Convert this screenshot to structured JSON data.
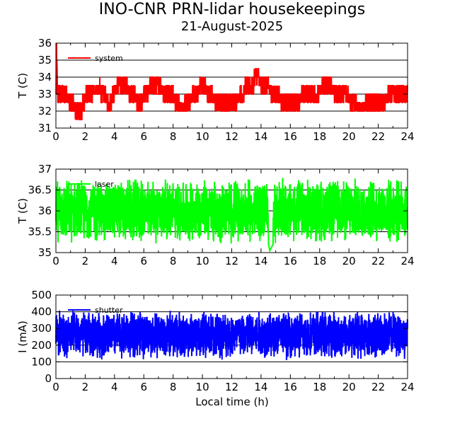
{
  "figure": {
    "title": "INO-CNR PRN-lidar housekeepings",
    "subtitle": "21-August-2025",
    "xlabel": "Local time (h)"
  },
  "chart_data": [
    {
      "type": "line",
      "ylabel": "T (C)",
      "xlim": [
        0,
        24
      ],
      "ylim": [
        31,
        36
      ],
      "x_ticks": [
        0,
        2,
        4,
        6,
        8,
        10,
        12,
        14,
        16,
        18,
        20,
        22,
        24
      ],
      "y_ticks": [
        31,
        32,
        33,
        34,
        35,
        36
      ],
      "grid": true,
      "legend_position": "top-left",
      "series": [
        {
          "name": "system",
          "color": "#ff0000",
          "x": [
            0.0,
            0.05,
            0.1,
            0.5,
            1.0,
            1.4,
            1.7,
            2.0,
            2.5,
            3.0,
            3.4,
            3.7,
            4.0,
            4.5,
            5.0,
            5.4,
            5.7,
            6.0,
            6.5,
            7.0,
            7.5,
            8.0,
            8.4,
            8.7,
            9.0,
            9.5,
            10.0,
            10.5,
            11.0,
            11.5,
            12.0,
            12.5,
            13.0,
            13.5,
            13.6,
            14.0,
            14.5,
            15.0,
            15.5,
            16.0,
            16.5,
            17.0,
            17.5,
            18.0,
            18.5,
            19.0,
            19.5,
            20.0,
            20.5,
            21.0,
            21.5,
            22.0,
            22.5,
            23.0,
            23.5,
            23.9
          ],
          "y": [
            33.0,
            35.6,
            33.2,
            33.0,
            32.6,
            32.0,
            32.0,
            32.8,
            33.2,
            33.3,
            32.8,
            32.5,
            33.2,
            33.6,
            33.2,
            32.8,
            32.5,
            32.8,
            33.5,
            33.5,
            33.0,
            32.8,
            32.3,
            32.2,
            32.5,
            33.0,
            33.5,
            33.0,
            32.5,
            32.3,
            32.5,
            32.8,
            33.4,
            33.6,
            34.3,
            33.5,
            33.3,
            33.0,
            32.6,
            32.5,
            32.6,
            33.0,
            32.8,
            33.2,
            33.5,
            33.2,
            32.8,
            32.8,
            32.3,
            32.2,
            32.6,
            32.4,
            32.7,
            33.0,
            33.2,
            33.1
          ]
        }
      ]
    },
    {
      "type": "line",
      "ylabel": "T (C)",
      "xlim": [
        0,
        24
      ],
      "ylim": [
        35,
        37
      ],
      "x_ticks": [
        0,
        2,
        4,
        6,
        8,
        10,
        12,
        14,
        16,
        18,
        20,
        22,
        24
      ],
      "y_ticks": [
        35,
        35.5,
        36,
        36.5,
        37
      ],
      "grid": true,
      "legend_position": "top-left",
      "series": [
        {
          "name": "laser",
          "color": "#00ff00",
          "x": [
            0,
            2,
            4,
            6,
            8,
            10,
            12,
            14,
            14.6,
            16,
            18,
            20,
            22,
            24
          ],
          "y": [
            36.0,
            36.0,
            36.0,
            36.0,
            36.0,
            36.0,
            36.0,
            36.0,
            35.05,
            36.0,
            36.0,
            36.0,
            36.0,
            36.0
          ],
          "range_min": 35.2,
          "range_max": 36.8
        }
      ]
    },
    {
      "type": "line",
      "ylabel": "I (mA)",
      "xlim": [
        0,
        24
      ],
      "ylim": [
        0,
        500
      ],
      "x_ticks": [
        0,
        2,
        4,
        6,
        8,
        10,
        12,
        14,
        16,
        18,
        20,
        22,
        24
      ],
      "y_ticks": [
        0,
        100,
        200,
        300,
        400,
        500
      ],
      "grid": true,
      "legend_position": "top-left",
      "series": [
        {
          "name": "shutter",
          "color": "#0000ff",
          "x": [
            0,
            2,
            4,
            6,
            8,
            10,
            12,
            14,
            16,
            18,
            20,
            22,
            24
          ],
          "y": [
            260,
            260,
            260,
            260,
            260,
            260,
            260,
            260,
            260,
            260,
            260,
            260,
            260
          ],
          "range_min": 110,
          "range_max": 415
        }
      ]
    }
  ]
}
